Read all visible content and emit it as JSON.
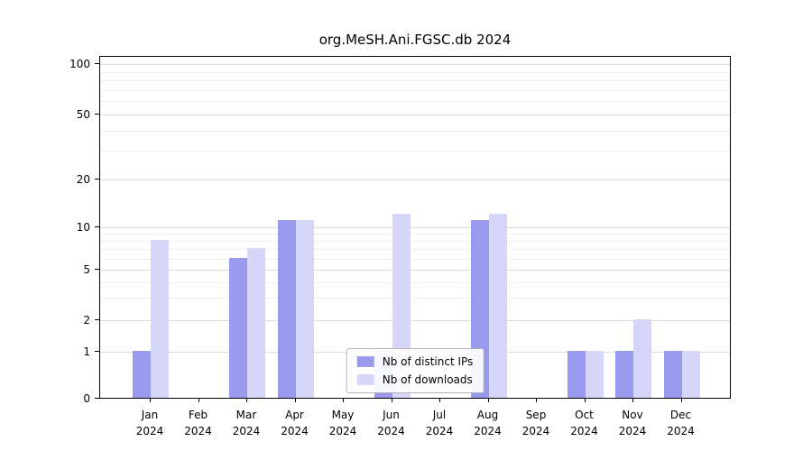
{
  "chart_data": {
    "type": "bar",
    "title": "org.MeSH.Ani.FGSC.db 2024",
    "categories": [
      "Jan",
      "Feb",
      "Mar",
      "Apr",
      "May",
      "Jun",
      "Jul",
      "Aug",
      "Sep",
      "Oct",
      "Nov",
      "Dec"
    ],
    "year_label": "2024",
    "series": [
      {
        "name": "Nb of distinct IPs",
        "color": "#9999ee",
        "values": [
          1,
          0,
          6,
          11,
          0,
          1,
          0,
          11,
          0,
          1,
          1,
          1
        ]
      },
      {
        "name": "Nb of downloads",
        "color": "#d6d6f8",
        "values": [
          8,
          0,
          7,
          11,
          0,
          12,
          0,
          12,
          0,
          1,
          2,
          1
        ]
      }
    ],
    "yticks": [
      0,
      1,
      2,
      5,
      10,
      20,
      50,
      100
    ],
    "ylim": [
      0,
      112
    ],
    "grid": true,
    "legend_position": "lower center"
  }
}
